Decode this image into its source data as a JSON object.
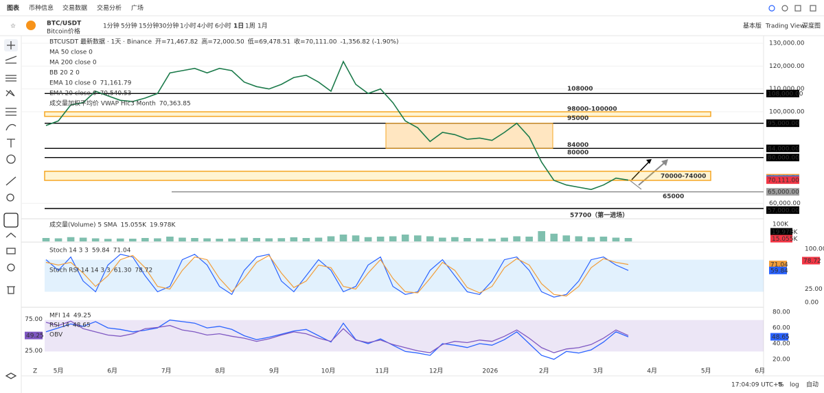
{
  "nav": {
    "tabs": [
      "图表",
      "币种信息",
      "交易数据",
      "交易分析",
      "广场"
    ]
  },
  "toolbar": {
    "symbol": "BTC/USDT",
    "subtitle": "Bitcoin价格",
    "intervals": [
      "1分钟",
      "5分钟",
      "15分钟",
      "30分钟",
      "1小时",
      "4小时",
      "6小时",
      "1日",
      "1周",
      "1月"
    ],
    "views": [
      "基本版",
      "Trading View",
      "深度图"
    ]
  },
  "status": {
    "time": "17:04:09 UTC+8",
    "options": [
      "%",
      "log",
      "自动"
    ],
    "corner": "Z"
  },
  "chart_data": [
    {
      "type": "line",
      "title": "BTCUSDT 最新数据 · 1天 · Binance",
      "ohlc": [
        "开=71,467.82",
        "高=72,000.50",
        "低=69,478.51",
        "收=70,111.00",
        "-1,356.82 (-1.90%)"
      ],
      "indicators": [
        {
          "name": "MA 50 close 0"
        },
        {
          "name": "MA 200 close 0"
        },
        {
          "name": "BB 20 2 0"
        },
        {
          "name": "EMA 10 close 0",
          "value_label": "71,161.79",
          "color": "#f29d38"
        },
        {
          "name": "EMA 20 close 0",
          "value_label": "70,540.53",
          "color": "#2962ff"
        },
        {
          "name": "成交量加权平均价 VWAP Hlc3 Month",
          "value_label": "70,363.85",
          "color": "#2962ff"
        }
      ],
      "color": "#1b7a4a",
      "values": [
        94000,
        96000,
        103000,
        104000,
        109000,
        107000,
        105000,
        104500,
        106000,
        108000,
        117000,
        118000,
        119000,
        117000,
        119000,
        118000,
        113000,
        111000,
        110000,
        112000,
        115000,
        116000,
        113000,
        109000,
        122000,
        112000,
        108000,
        110000,
        104000,
        96000,
        93000,
        87000,
        91000,
        90000,
        88000,
        88500,
        87500,
        91000,
        95000,
        89000,
        78000,
        70000,
        68000,
        67000,
        66000,
        68000,
        71000,
        70111
      ],
      "ylim": [
        53500,
        132400
      ],
      "yticks": [
        {
          "value": 130000,
          "label": "130,000.00"
        },
        {
          "value": 120000,
          "label": "120,000.00"
        },
        {
          "value": 110000,
          "label": "110,000.00"
        },
        {
          "value": 100000,
          "label": "100,000.00"
        },
        {
          "value": 60000,
          "label": "60,000.00"
        }
      ],
      "levels": [
        {
          "value": 108000,
          "label": "108000",
          "color": "#e0102f"
        },
        {
          "range": [
            98000,
            100000
          ],
          "label": "98000-100000",
          "color": "#e0102f"
        },
        {
          "value": 95000,
          "label": "95000",
          "color": "#e0102f"
        },
        {
          "value": 84000,
          "label": "84000",
          "color": "#1e5fd0"
        },
        {
          "value": 80000,
          "label": "80000",
          "color": "#1e5fd0"
        },
        {
          "range": [
            70000,
            74000
          ],
          "label": "70000-74000",
          "color": "#1e5fd0"
        },
        {
          "value": 65000,
          "label": "65000",
          "color": "#1e5fd0"
        },
        {
          "value": 57700,
          "label": "57700（第一进场）",
          "color": "#1e5fd0"
        }
      ],
      "price_labels": [
        {
          "value": 108000,
          "label": "108,000.00",
          "color": "#000000"
        },
        {
          "value": 95000,
          "label": "95,000.00",
          "color": "#000000"
        },
        {
          "value": 84000,
          "label": "84,000.00",
          "color": "#000000"
        },
        {
          "value": 80000,
          "label": "80,000.00",
          "color": "#000000"
        },
        {
          "value": 71161.79,
          "label": "71,161.79",
          "color": "#f29d38"
        },
        {
          "value": 70540.53,
          "label": "70,540.53",
          "color": "#2962ff"
        },
        {
          "value": 70363.85,
          "label": "70,363.85",
          "color": "#1e88e5"
        },
        {
          "value": 70111,
          "label": "70,111.00",
          "color": "#f23645"
        },
        {
          "value": 65000,
          "label": "65,000.00",
          "color": "#9e9e9e"
        },
        {
          "value": 57000,
          "label": "57,000.00",
          "color": "#000000"
        }
      ],
      "x_labels": [
        "5月",
        "6月",
        "7月",
        "8月",
        "9月",
        "10月",
        "11月",
        "12月",
        "2026",
        "2月",
        "3月",
        "4月",
        "5月",
        "6月"
      ]
    },
    {
      "type": "bar",
      "title": "成交量(Volume) 5 SMA",
      "sma_label": "15.055K",
      "last_label": "19.978K",
      "color": "#7fbfae",
      "values": [
        20,
        18,
        25,
        22,
        18,
        15,
        17,
        16,
        20,
        18,
        28,
        22,
        20,
        18,
        16,
        17,
        22,
        20,
        18,
        19,
        24,
        20,
        22,
        30,
        40,
        35,
        25,
        28,
        30,
        40,
        35,
        30,
        22,
        25,
        20,
        18,
        16,
        22,
        30,
        28,
        60,
        45,
        35,
        30,
        25,
        28,
        22,
        19.978
      ],
      "ylim": [
        0,
        120
      ],
      "yticks": [
        {
          "value": 100,
          "label": "100K"
        }
      ]
    },
    {
      "type": "line",
      "indicators": [
        {
          "name": "Stoch 14 3 3",
          "values_text": [
            "59.84",
            "71.04"
          ]
        },
        {
          "name": "Stoch RSI 14 14 3 3",
          "values_text": [
            "61.30",
            "78.72"
          ]
        }
      ],
      "series": [
        {
          "color": "#2962ff",
          "values": [
            80,
            60,
            85,
            40,
            20,
            70,
            90,
            85,
            50,
            20,
            30,
            80,
            90,
            70,
            30,
            15,
            60,
            85,
            90,
            40,
            20,
            50,
            80,
            60,
            20,
            30,
            70,
            85,
            30,
            15,
            20,
            60,
            80,
            50,
            20,
            15,
            40,
            80,
            85,
            60,
            20,
            10,
            15,
            40,
            80,
            85,
            70,
            59.84
          ]
        },
        {
          "color": "#f29d38",
          "values": [
            75,
            70,
            75,
            55,
            30,
            50,
            80,
            88,
            65,
            30,
            25,
            60,
            85,
            80,
            45,
            20,
            45,
            75,
            88,
            55,
            28,
            40,
            70,
            65,
            30,
            25,
            55,
            80,
            45,
            20,
            18,
            45,
            75,
            60,
            28,
            18,
            30,
            65,
            82,
            70,
            35,
            15,
            12,
            30,
            65,
            82,
            75,
            71.04
          ]
        }
      ],
      "band": [
        20,
        80
      ],
      "ylim": [
        -7.7,
        110.3
      ],
      "yticks": [
        {
          "value": 100,
          "label": "100.00"
        },
        {
          "value": 25,
          "label": "25.00"
        },
        {
          "value": 0,
          "label": "0.00"
        }
      ],
      "last_labels": [
        {
          "value": 71.04,
          "label": "71.04",
          "color": "#f29d38"
        },
        {
          "value": 59.84,
          "label": "59.84",
          "color": "#2962ff"
        },
        {
          "value": 78.72,
          "label": "78.72",
          "color": "#f23645"
        }
      ]
    },
    {
      "type": "line",
      "indicators": [
        {
          "name": "MFI 14",
          "values_text": [
            "49.25"
          ]
        },
        {
          "name": "RSI 14",
          "values_text": [
            "48.65"
          ]
        },
        {
          "name": "OBV"
        }
      ],
      "series": [
        {
          "color": "#2962ff",
          "values": [
            55,
            60,
            65,
            62,
            68,
            60,
            58,
            55,
            57,
            60,
            70,
            68,
            66,
            60,
            62,
            58,
            50,
            45,
            48,
            52,
            56,
            58,
            50,
            42,
            66,
            45,
            40,
            46,
            38,
            30,
            28,
            25,
            40,
            38,
            35,
            40,
            38,
            45,
            55,
            40,
            25,
            20,
            30,
            28,
            32,
            42,
            55,
            48.65
          ]
        },
        {
          "color": "#7e57c2",
          "axis": "y2",
          "values": [
            70,
            65,
            72,
            60,
            55,
            50,
            48,
            52,
            60,
            62,
            65,
            58,
            55,
            50,
            52,
            48,
            45,
            40,
            44,
            50,
            55,
            52,
            45,
            40,
            60,
            42,
            38,
            42,
            35,
            30,
            25,
            22,
            35,
            40,
            38,
            42,
            40,
            48,
            58,
            45,
            30,
            22,
            28,
            30,
            35,
            45,
            58,
            49.25
          ]
        }
      ],
      "band": [
        30,
        70
      ],
      "ylim": [
        12.9,
        84.5
      ],
      "yticks": [
        {
          "value": 80,
          "label": "80.00"
        },
        {
          "value": 60,
          "label": "60.00"
        },
        {
          "value": 40,
          "label": "40.00"
        },
        {
          "value": 20,
          "label": "20.00"
        }
      ],
      "y2lim": [
        2.8,
        91.7
      ],
      "y2ticks": [
        {
          "value": 75,
          "label": "75.00"
        },
        {
          "value": 25,
          "label": "25.00"
        }
      ]
    }
  ]
}
